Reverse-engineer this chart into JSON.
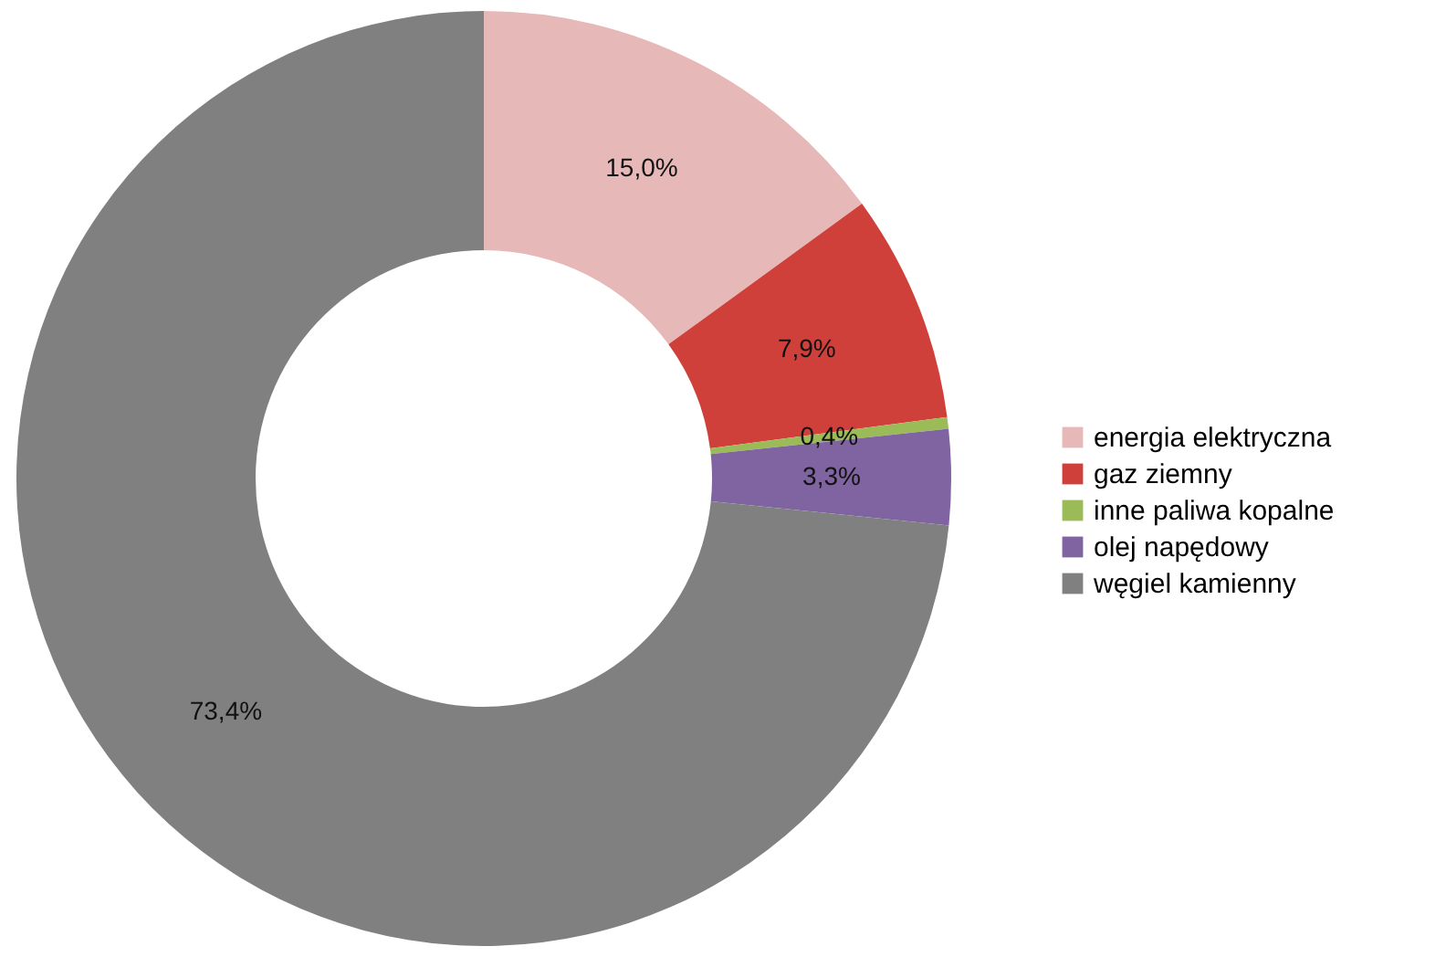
{
  "chart_data": {
    "type": "donut",
    "categories": [
      "energia elektryczna",
      "gaz ziemny",
      "inne paliwa kopalne",
      "olej napędowy",
      "węgiel kamienny"
    ],
    "values": [
      15.0,
      7.9,
      0.4,
      3.3,
      73.4
    ],
    "colors": [
      "#e6b9b8",
      "#d0403b",
      "#9bbb59",
      "#8064a2",
      "#808080"
    ],
    "value_labels": [
      "15,0%",
      "7,9%",
      "0,4%",
      "3,3%",
      "73,4%"
    ],
    "legend": "right"
  }
}
